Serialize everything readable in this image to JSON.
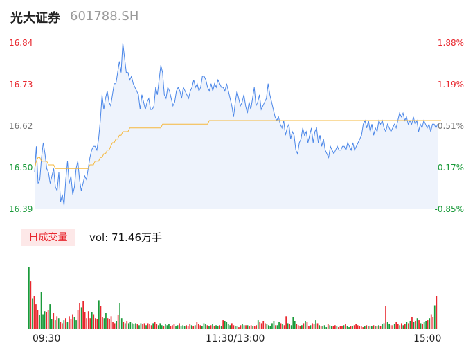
{
  "header": {
    "name": "光大证券",
    "code": "601788.SH"
  },
  "volume_panel": {
    "tag": "日成交量",
    "vol_label": "vol: 71.46万手"
  },
  "colors": {
    "price_line": "#4a86e8",
    "avg_line": "#f5b83d",
    "up": "#e8272e",
    "down": "#1a9a3a",
    "flat": "#777777",
    "area_fill": "#eef3fc"
  },
  "chart_data": [
    {
      "type": "line",
      "title": "",
      "x_ticks": [
        "09:30",
        "11:30/13:00",
        "15:00"
      ],
      "y_ticks_price": [
        "16.84",
        "16.73",
        "16.62",
        "16.50",
        "16.39"
      ],
      "y_ticks_pct": [
        "1.88%",
        "1.19%",
        "0.51%",
        "-0.17%",
        "-0.85%"
      ],
      "ylim": [
        16.39,
        16.84
      ],
      "prev_close": 16.53,
      "series": [
        {
          "values": [
            16.49,
            16.56,
            16.46,
            16.47,
            16.53,
            16.57,
            16.54,
            16.5,
            16.49,
            16.46,
            16.48,
            16.5,
            16.45,
            16.44,
            16.49,
            16.41,
            16.43,
            16.4,
            16.47,
            16.52,
            16.46,
            16.48,
            16.43,
            16.45,
            16.5,
            16.52,
            16.47,
            16.44,
            16.46,
            16.48,
            16.47,
            16.5,
            16.53,
            16.55,
            16.56,
            16.56,
            16.55,
            16.58,
            16.63,
            16.7,
            16.66,
            16.69,
            16.71,
            16.68,
            16.67,
            16.7,
            16.73,
            16.73,
            16.76,
            16.79,
            16.76,
            16.84,
            16.8,
            16.76,
            16.76,
            16.74,
            16.75,
            16.73,
            16.72,
            16.71,
            16.7,
            16.66,
            16.7,
            16.68,
            16.66,
            16.68,
            16.69,
            16.66,
            16.66,
            16.67,
            16.72,
            16.7,
            16.74,
            16.78,
            16.76,
            16.7,
            16.69,
            16.72,
            16.71,
            16.69,
            16.67,
            16.68,
            16.71,
            16.72,
            16.71,
            16.69,
            16.72,
            16.71,
            16.7,
            16.69,
            16.71,
            16.72,
            16.74,
            16.72,
            16.73,
            16.71,
            16.72,
            16.75,
            16.75,
            16.74,
            16.72,
            16.71,
            16.73,
            16.71,
            16.73,
            16.72,
            16.74,
            16.73,
            16.72,
            16.72,
            16.71,
            16.73,
            16.71,
            16.69,
            16.67,
            16.64,
            16.68,
            16.71,
            16.69,
            16.67,
            16.68,
            16.7,
            16.67,
            16.65,
            16.68,
            16.66,
            16.69,
            16.72,
            16.67,
            16.68,
            16.7,
            16.66,
            16.67,
            16.68,
            16.69,
            16.73,
            16.7,
            16.68,
            16.66,
            16.64,
            16.63,
            16.64,
            16.62,
            16.61,
            16.63,
            16.59,
            16.61,
            16.62,
            16.58,
            16.6,
            16.59,
            16.55,
            16.54,
            16.57,
            16.58,
            16.61,
            16.59,
            16.6,
            16.57,
            16.59,
            16.61,
            16.57,
            16.6,
            16.61,
            16.57,
            16.59,
            16.56,
            16.58,
            16.55,
            16.54,
            16.53,
            16.56,
            16.55,
            16.54,
            16.55,
            16.56,
            16.55,
            16.55,
            16.56,
            16.56,
            16.55,
            16.57,
            16.56,
            16.55,
            16.57,
            16.55,
            16.56,
            16.57,
            16.58,
            16.59,
            16.62,
            16.63,
            16.61,
            16.63,
            16.6,
            16.62,
            16.59,
            16.61,
            16.6,
            16.63,
            16.62,
            16.63,
            16.61,
            16.6,
            16.62,
            16.61,
            16.6,
            16.61,
            16.62,
            16.61,
            16.63,
            16.65,
            16.64,
            16.65,
            16.63,
            16.64,
            16.62,
            16.63,
            16.62,
            16.64,
            16.62,
            16.63,
            16.6,
            16.62,
            16.61,
            16.63,
            16.62,
            16.61,
            16.62,
            16.6,
            16.62,
            16.62,
            16.61,
            16.62
          ]
        },
        {
          "values": [
            16.5,
            16.52,
            16.53,
            16.53,
            16.52,
            16.52,
            16.52,
            16.52,
            16.51,
            16.51,
            16.51,
            16.51,
            16.5,
            16.5,
            16.5,
            16.5,
            16.5,
            16.5,
            16.5,
            16.5,
            16.5,
            16.5,
            16.5,
            16.5,
            16.5,
            16.5,
            16.5,
            16.5,
            16.5,
            16.5,
            16.5,
            16.5,
            16.51,
            16.51,
            16.51,
            16.52,
            16.52,
            16.52,
            16.53,
            16.53,
            16.54,
            16.54,
            16.55,
            16.55,
            16.56,
            16.57,
            16.57,
            16.58,
            16.58,
            16.59,
            16.59,
            16.6,
            16.6,
            16.6,
            16.6,
            16.61,
            16.61,
            16.61,
            16.61,
            16.61,
            16.61,
            16.61,
            16.61,
            16.61,
            16.61,
            16.61,
            16.61,
            16.61,
            16.61,
            16.61,
            16.61,
            16.61,
            16.61,
            16.61,
            16.62,
            16.62,
            16.62,
            16.62,
            16.62,
            16.62,
            16.62,
            16.62,
            16.62,
            16.62,
            16.62,
            16.62,
            16.62,
            16.62,
            16.62,
            16.62,
            16.62,
            16.62,
            16.62,
            16.62,
            16.62,
            16.62,
            16.62,
            16.62,
            16.62,
            16.62,
            16.62,
            16.63,
            16.63,
            16.63,
            16.63,
            16.63,
            16.63,
            16.63,
            16.63,
            16.63,
            16.63,
            16.63,
            16.63,
            16.63,
            16.63,
            16.63,
            16.63,
            16.63,
            16.63,
            16.63,
            16.63,
            16.63,
            16.63,
            16.63,
            16.63,
            16.63,
            16.63,
            16.63,
            16.63,
            16.63,
            16.63,
            16.63,
            16.63,
            16.63,
            16.63,
            16.63,
            16.63,
            16.63,
            16.63,
            16.63,
            16.63,
            16.63,
            16.63,
            16.63,
            16.63,
            16.63,
            16.63,
            16.63,
            16.63,
            16.63,
            16.63,
            16.63,
            16.63,
            16.63,
            16.63,
            16.63,
            16.63,
            16.63,
            16.63,
            16.63,
            16.63,
            16.63,
            16.63,
            16.63,
            16.63,
            16.63,
            16.63,
            16.63,
            16.63,
            16.63,
            16.63,
            16.63,
            16.63,
            16.63,
            16.63,
            16.63,
            16.63,
            16.63,
            16.63,
            16.63,
            16.63,
            16.63,
            16.63,
            16.63,
            16.63,
            16.63,
            16.63,
            16.63,
            16.63,
            16.63,
            16.63,
            16.63,
            16.63,
            16.63,
            16.63,
            16.63,
            16.63,
            16.63,
            16.63,
            16.63,
            16.63,
            16.63,
            16.63,
            16.63,
            16.63,
            16.63,
            16.63,
            16.63,
            16.63,
            16.63,
            16.63,
            16.63,
            16.63,
            16.63,
            16.63,
            16.63,
            16.63,
            16.63,
            16.63,
            16.63,
            16.63,
            16.63,
            16.63,
            16.63,
            16.63,
            16.63,
            16.63,
            16.63,
            16.63,
            16.63,
            16.63,
            16.63,
            16.63,
            16.63,
            16.63,
            16.63
          ]
        }
      ]
    },
    {
      "type": "bar",
      "title": "",
      "unit": "万手",
      "values": [
        6.2,
        4.8,
        3.1,
        3.3,
        2.5,
        1.9,
        1.4,
        3.7,
        1.5,
        1.8,
        1.7,
        1.9,
        2.5,
        1.0,
        1.6,
        0.9,
        1.3,
        1.1,
        0.7,
        0.6,
        0.9,
        1.1,
        0.7,
        1.3,
        1.0,
        1.5,
        1.2,
        0.9,
        1.9,
        2.6,
        2.2,
        2.8,
        1.7,
        1.1,
        1.8,
        1.1,
        1.7,
        1.5,
        1.1,
        1.0,
        2.9,
        2.3,
        1.2,
        1.1,
        1.6,
        1.1,
        1.0,
        1.3,
        0.7,
        0.6,
        0.8,
        1.4,
        2.6,
        1.1,
        0.7,
        0.6,
        0.8,
        0.6,
        0.7,
        0.6,
        0.5,
        0.6,
        0.5,
        0.4,
        0.6,
        0.5,
        0.6,
        0.4,
        0.6,
        0.5,
        0.4,
        0.6,
        0.7,
        0.5,
        0.4,
        0.6,
        0.4,
        0.3,
        0.5,
        0.4,
        0.5,
        0.3,
        0.4,
        0.5,
        0.3,
        0.4,
        0.6,
        0.3,
        0.4,
        0.3,
        0.4,
        0.3,
        0.5,
        0.4,
        0.3,
        0.4,
        0.7,
        0.5,
        0.4,
        0.3,
        0.6,
        0.5,
        0.4,
        0.3,
        0.4,
        0.5,
        0.3,
        0.4,
        0.3,
        0.4,
        0.3,
        0.9,
        0.8,
        0.7,
        0.5,
        0.4,
        0.6,
        0.4,
        0.3,
        0.3,
        0.2,
        0.4,
        0.5,
        0.4,
        0.4,
        0.4,
        0.3,
        0.4,
        0.3,
        0.3,
        0.4,
        0.9,
        0.7,
        0.6,
        0.8,
        0.6,
        0.5,
        0.4,
        0.3,
        0.6,
        0.8,
        0.4,
        0.4,
        0.7,
        0.6,
        0.5,
        0.4,
        1.3,
        0.6,
        0.5,
        0.4,
        1.2,
        0.8,
        0.5,
        0.4,
        0.3,
        0.4,
        0.6,
        0.8,
        0.7,
        0.3,
        0.4,
        0.6,
        0.5,
        0.9,
        0.6,
        0.4,
        0.3,
        0.3,
        0.4,
        0.2,
        0.5,
        0.4,
        0.3,
        0.3,
        0.4,
        0.3,
        0.2,
        0.3,
        0.3,
        0.4,
        0.5,
        0.3,
        0.2,
        0.3,
        0.3,
        0.4,
        0.5,
        0.4,
        0.3,
        0.3,
        0.2,
        0.3,
        0.4,
        0.3,
        0.3,
        0.3,
        0.4,
        0.3,
        0.3,
        0.4,
        0.3,
        0.5,
        0.6,
        2.3,
        0.7,
        0.5,
        0.4,
        0.4,
        0.5,
        0.7,
        0.5,
        0.4,
        0.6,
        0.4,
        0.5,
        0.7,
        0.6,
        0.8,
        1.2,
        0.7,
        0.8,
        1.1,
        0.9,
        0.6,
        0.5,
        0.7,
        0.8,
        0.9,
        1.1,
        1.5,
        1.2,
        2.4,
        3.3
      ]
    }
  ]
}
